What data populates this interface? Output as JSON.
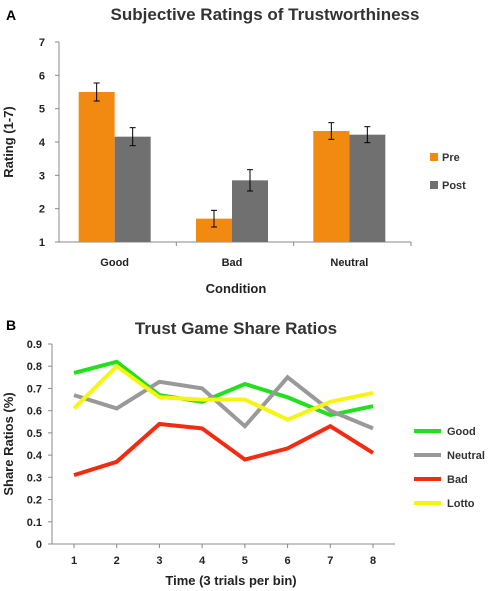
{
  "chart_data": [
    {
      "type": "bar",
      "panel_label": "A",
      "title": "Subjective Ratings of Trustworthiness",
      "xlabel": "Condition",
      "ylabel": "Rating (1-7)",
      "ylim": [
        1,
        7
      ],
      "yticks": [
        "1",
        "2",
        "3",
        "4",
        "5",
        "6",
        "7"
      ],
      "categories": [
        "Good",
        "Bad",
        "Neutral"
      ],
      "series": [
        {
          "name": "Pre",
          "color": "#F28A11",
          "values": [
            5.5,
            1.7,
            4.33
          ],
          "errors": [
            0.27,
            0.25,
            0.25
          ]
        },
        {
          "name": "Post",
          "color": "#707070",
          "values": [
            4.16,
            2.85,
            4.22
          ],
          "errors": [
            0.27,
            0.32,
            0.24
          ]
        }
      ],
      "legend": "right",
      "grid": false
    },
    {
      "type": "line",
      "panel_label": "B",
      "title": "Trust Game Share Ratios",
      "xlabel": "Time (3 trials per bin)",
      "ylabel": "Share Ratios (%)",
      "ylim": [
        0,
        0.9
      ],
      "yticks": [
        "0",
        "0.1",
        "0.2",
        "0.3",
        "0.4",
        "0.5",
        "0.6",
        "0.7",
        "0.8",
        "0.9"
      ],
      "x": [
        "1",
        "2",
        "3",
        "4",
        "5",
        "6",
        "7",
        "8"
      ],
      "series": [
        {
          "name": "Good",
          "color": "#22E01E",
          "values": [
            0.77,
            0.82,
            0.67,
            0.64,
            0.72,
            0.66,
            0.58,
            0.62
          ]
        },
        {
          "name": "Neutral",
          "color": "#999999",
          "values": [
            0.67,
            0.61,
            0.73,
            0.7,
            0.53,
            0.75,
            0.6,
            0.52
          ]
        },
        {
          "name": "Bad",
          "color": "#F42B11",
          "values": [
            0.31,
            0.37,
            0.54,
            0.52,
            0.38,
            0.43,
            0.53,
            0.41
          ]
        },
        {
          "name": "Lotto",
          "color": "#F5F50F",
          "values": [
            0.61,
            0.8,
            0.66,
            0.65,
            0.65,
            0.56,
            0.64,
            0.68
          ]
        }
      ],
      "legend": "right",
      "grid": false
    }
  ]
}
